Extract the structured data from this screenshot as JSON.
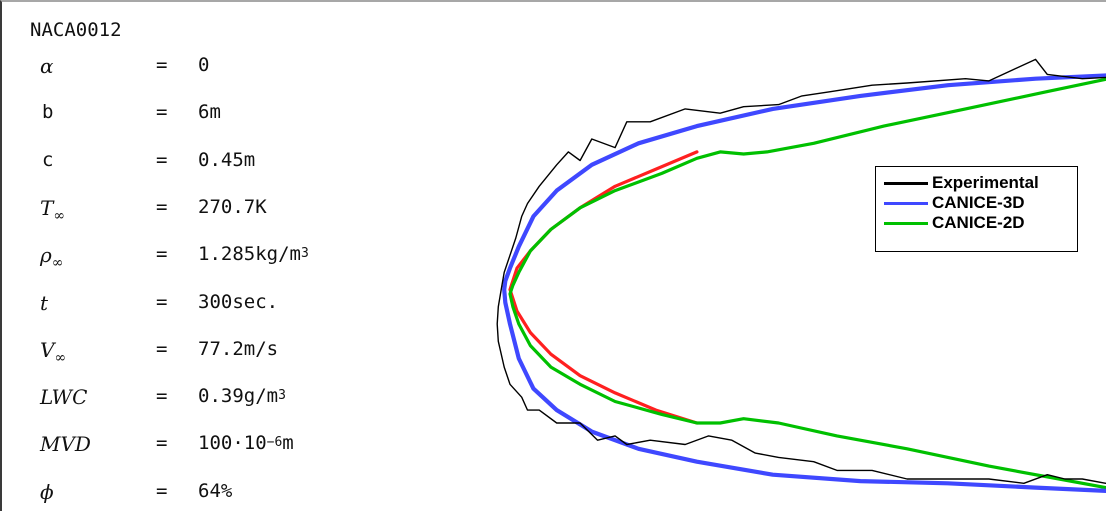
{
  "chart_data": {
    "type": "line",
    "title": "NACA0012",
    "xlabel": "",
    "ylabel": "",
    "grid": false,
    "legend_position": "right",
    "xlim": [
      -0.06,
      1.08
    ],
    "ylim": [
      -0.56,
      0.56
    ],
    "series": [
      {
        "name": "Experimental",
        "color": "#000000",
        "x": [
          1.05,
          0.98,
          0.92,
          0.9,
          0.86,
          0.82,
          0.78,
          0.68,
          0.62,
          0.55,
          0.5,
          0.46,
          0.4,
          0.36,
          0.3,
          0.24,
          0.2,
          0.18,
          0.14,
          0.12,
          0.1,
          0.08,
          0.05,
          0.03,
          0.02,
          0.01,
          0.0,
          -0.01,
          -0.015,
          -0.02,
          -0.022,
          -0.02,
          -0.01,
          0.0,
          0.02,
          0.03,
          0.05,
          0.08,
          0.12,
          0.15,
          0.18,
          0.2,
          0.24,
          0.3,
          0.34,
          0.38,
          0.42,
          0.46,
          0.52,
          0.56,
          0.62,
          0.68,
          0.76,
          0.82,
          0.88,
          0.92,
          0.95,
          0.98,
          1.02,
          1.05
        ],
        "y": [
          0.475,
          0.47,
          0.48,
          0.515,
          0.49,
          0.465,
          0.47,
          0.46,
          0.455,
          0.44,
          0.43,
          0.41,
          0.405,
          0.39,
          0.4,
          0.37,
          0.37,
          0.31,
          0.33,
          0.28,
          0.3,
          0.27,
          0.22,
          0.18,
          0.15,
          0.1,
          0.06,
          0.02,
          -0.02,
          -0.06,
          -0.1,
          -0.14,
          -0.2,
          -0.24,
          -0.27,
          -0.3,
          -0.3,
          -0.33,
          -0.33,
          -0.37,
          -0.36,
          -0.38,
          -0.37,
          -0.38,
          -0.36,
          -0.37,
          -0.4,
          -0.41,
          -0.42,
          -0.44,
          -0.44,
          -0.46,
          -0.46,
          -0.46,
          -0.47,
          -0.45,
          -0.46,
          -0.46,
          -0.47,
          -0.47
        ]
      },
      {
        "name": "CANICE-3D",
        "color": "#3f48ff",
        "x": [
          1.06,
          0.9,
          0.75,
          0.6,
          0.45,
          0.32,
          0.22,
          0.14,
          0.08,
          0.04,
          0.015,
          0.0,
          -0.008,
          -0.01,
          -0.008,
          0.0,
          0.015,
          0.04,
          0.08,
          0.14,
          0.22,
          0.32,
          0.45,
          0.6,
          0.75,
          0.9,
          1.06
        ],
        "y": [
          0.48,
          0.47,
          0.455,
          0.43,
          0.4,
          0.36,
          0.32,
          0.27,
          0.21,
          0.15,
          0.08,
          0.03,
          0.0,
          -0.02,
          -0.05,
          -0.1,
          -0.18,
          -0.25,
          -0.3,
          -0.35,
          -0.39,
          -0.42,
          -0.45,
          -0.465,
          -0.47,
          -0.48,
          -0.49
        ]
      },
      {
        "name": "CANICE-2D",
        "color": "#00c000",
        "x": [
          1.06,
          0.92,
          0.78,
          0.64,
          0.52,
          0.44,
          0.4,
          0.36,
          0.32,
          0.26,
          0.18,
          0.12,
          0.07,
          0.035,
          0.015,
          0.005,
          0.0,
          0.005,
          0.015,
          0.035,
          0.07,
          0.12,
          0.18,
          0.26,
          0.32,
          0.36,
          0.4,
          0.46,
          0.56,
          0.68,
          0.82,
          0.94,
          1.06
        ],
        "y": [
          0.48,
          0.44,
          0.4,
          0.36,
          0.32,
          0.3,
          0.295,
          0.3,
          0.285,
          0.25,
          0.21,
          0.17,
          0.12,
          0.07,
          0.02,
          -0.01,
          -0.03,
          -0.06,
          -0.1,
          -0.15,
          -0.2,
          -0.24,
          -0.28,
          -0.31,
          -0.33,
          -0.33,
          -0.32,
          -0.33,
          -0.36,
          -0.39,
          -0.43,
          -0.46,
          -0.49
        ]
      },
      {
        "name": "",
        "color": "#ff2020",
        "x": [
          0.32,
          0.25,
          0.18,
          0.12,
          0.07,
          0.035,
          0.012,
          0.0,
          0.012,
          0.035,
          0.07,
          0.12,
          0.18,
          0.25,
          0.32
        ],
        "y": [
          0.3,
          0.26,
          0.22,
          0.17,
          0.12,
          0.07,
          0.03,
          -0.02,
          -0.07,
          -0.12,
          -0.17,
          -0.22,
          -0.26,
          -0.3,
          -0.33
        ]
      }
    ]
  },
  "params": [
    {
      "symbol": "α",
      "sub": "",
      "value": "0",
      "unit_sup": ""
    },
    {
      "symbol": "b",
      "sub": "",
      "value": "6m",
      "unit_sup": ""
    },
    {
      "symbol": "c",
      "sub": "",
      "value": "0.45m",
      "unit_sup": ""
    },
    {
      "symbol": "T",
      "sub": "∞",
      "value": "270.7K",
      "unit_sup": ""
    },
    {
      "symbol": "ρ",
      "sub": "∞",
      "value": "1.285kg/m",
      "unit_sup": "3"
    },
    {
      "symbol": "t",
      "sub": "",
      "value": "300sec.",
      "unit_sup": ""
    },
    {
      "symbol": "V",
      "sub": "∞",
      "value": "77.2m/s",
      "unit_sup": ""
    },
    {
      "symbol": "LWC",
      "sub": "",
      "value": "0.39g/m",
      "unit_sup": "3"
    },
    {
      "symbol": "MVD",
      "sub": "",
      "value": "100·10",
      "unit_sup": "−6",
      "value_tail": "m"
    },
    {
      "symbol": "ϕ",
      "sub": "",
      "value": "64%",
      "unit_sup": ""
    }
  ],
  "equals": "="
}
